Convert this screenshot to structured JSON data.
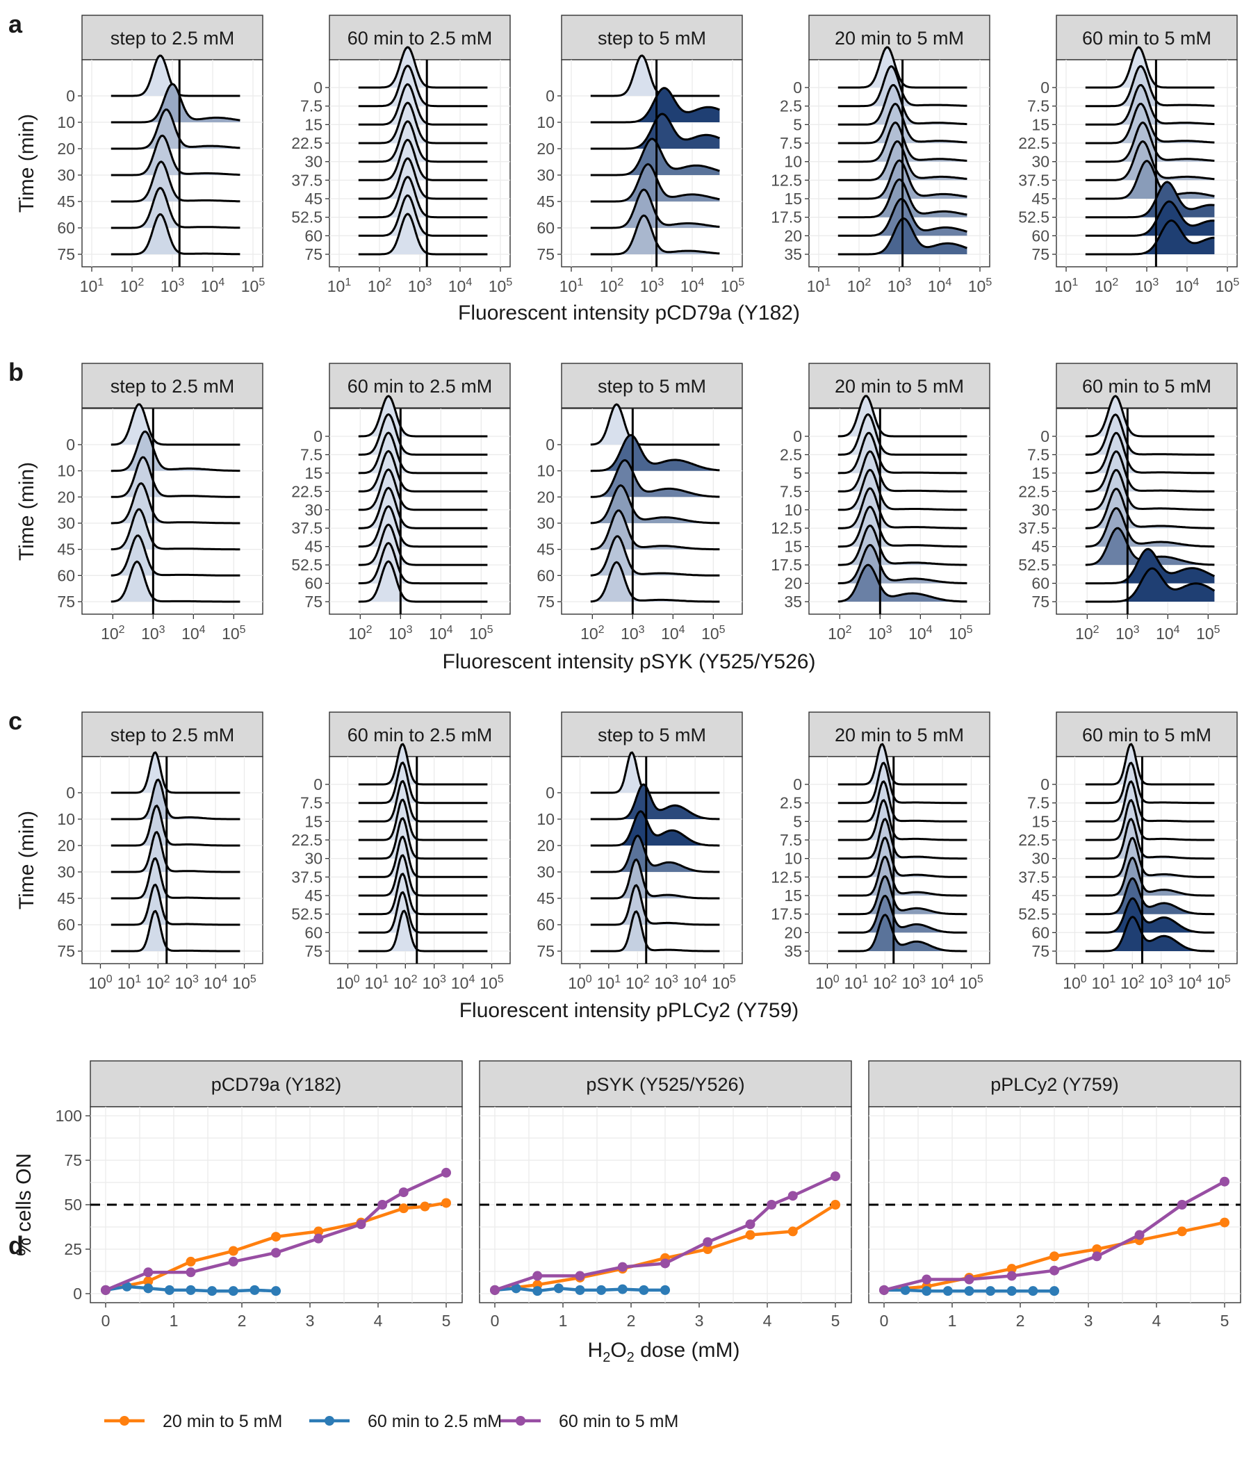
{
  "panel_letters": [
    "a",
    "b",
    "c",
    "d"
  ],
  "chart_data": [
    {
      "type": "ridgeline",
      "panel": "a",
      "xlabel": "Fluorescent intensity pCD79a (Y182)",
      "ylabel": "Time (min)",
      "x_scale": "log10",
      "x_ticks": [
        "10^1",
        "10^2",
        "10^3",
        "10^4",
        "10^5"
      ],
      "facets": [
        {
          "title": "step to 2.5 mM",
          "times": [
            "0",
            "10",
            "20",
            "30",
            "45",
            "60",
            "75"
          ],
          "threshold": 1500,
          "xlim": [
            10,
            100000
          ],
          "peak_log10": [
            2.7,
            3.0,
            2.85,
            2.75,
            2.72,
            2.7,
            2.7
          ],
          "tail_weight": [
            0,
            0.2,
            0.12,
            0.08,
            0.05,
            0.04,
            0.03
          ]
        },
        {
          "title": "60 min to 2.5 mM",
          "times": [
            "0",
            "7.5",
            "15",
            "22.5",
            "30",
            "37.5",
            "45",
            "52.5",
            "60",
            "75"
          ],
          "threshold": 1500,
          "xlim": [
            10,
            100000
          ],
          "peak_log10": [
            2.7,
            2.7,
            2.7,
            2.7,
            2.7,
            2.7,
            2.7,
            2.7,
            2.7,
            2.7
          ],
          "tail_weight": [
            0,
            0,
            0,
            0,
            0,
            0,
            0,
            0,
            0,
            0
          ]
        },
        {
          "title": "step to 5 mM",
          "times": [
            "0",
            "10",
            "20",
            "30",
            "45",
            "60",
            "75"
          ],
          "threshold": 1300,
          "xlim": [
            10,
            100000
          ],
          "peak_log10": [
            2.75,
            3.3,
            3.25,
            3.0,
            2.9,
            2.8,
            2.8
          ],
          "tail_weight": [
            0,
            0.6,
            0.55,
            0.4,
            0.3,
            0.2,
            0.15
          ]
        },
        {
          "title": "20 min to 5 mM",
          "times": [
            "0",
            "2.5",
            "5",
            "7.5",
            "10",
            "12.5",
            "15",
            "17.5",
            "20",
            "35"
          ],
          "threshold": 1200,
          "xlim": [
            10,
            100000
          ],
          "peak_log10": [
            2.7,
            2.8,
            2.85,
            2.9,
            2.9,
            2.95,
            3.0,
            3.0,
            3.05,
            3.1
          ],
          "tail_weight": [
            0,
            0.05,
            0.08,
            0.1,
            0.12,
            0.15,
            0.2,
            0.25,
            0.35,
            0.45
          ]
        },
        {
          "title": "60 min to 5 mM",
          "times": [
            "0",
            "7.5",
            "15",
            "22.5",
            "30",
            "37.5",
            "45",
            "52.5",
            "60",
            "75"
          ],
          "threshold": 1700,
          "xlim": [
            10,
            100000
          ],
          "peak_log10": [
            2.8,
            2.85,
            2.85,
            2.85,
            2.9,
            2.9,
            3.0,
            3.5,
            3.55,
            3.6
          ],
          "tail_weight": [
            0,
            0.05,
            0.08,
            0.1,
            0.12,
            0.15,
            0.25,
            0.5,
            0.6,
            0.65
          ]
        }
      ]
    },
    {
      "type": "ridgeline",
      "panel": "b",
      "xlabel": "Fluorescent intensity pSYK (Y525/Y526)",
      "ylabel": "Time (min)",
      "x_scale": "log10",
      "x_ticks": [
        "10^2",
        "10^3",
        "10^4",
        "10^5"
      ],
      "facets": [
        {
          "title": "step to 2.5 mM",
          "times": [
            "0",
            "10",
            "20",
            "30",
            "45",
            "60",
            "75"
          ],
          "threshold": 1000,
          "xlim": [
            30,
            300000
          ],
          "peak_log10": [
            2.65,
            2.8,
            2.75,
            2.7,
            2.65,
            2.62,
            2.6
          ],
          "tail_weight": [
            0,
            0.1,
            0.05,
            0.04,
            0.03,
            0.03,
            0.02
          ]
        },
        {
          "title": "60 min to 2.5 mM",
          "times": [
            "0",
            "7.5",
            "15",
            "22.5",
            "30",
            "37.5",
            "45",
            "52.5",
            "60",
            "75"
          ],
          "threshold": 1000,
          "xlim": [
            30,
            300000
          ],
          "peak_log10": [
            2.7,
            2.7,
            2.7,
            2.7,
            2.7,
            2.7,
            2.7,
            2.7,
            2.7,
            2.7
          ],
          "tail_weight": [
            0,
            0,
            0,
            0,
            0,
            0,
            0,
            0,
            0,
            0
          ]
        },
        {
          "title": "step to 5 mM",
          "times": [
            "0",
            "10",
            "20",
            "30",
            "45",
            "60",
            "75"
          ],
          "threshold": 1000,
          "xlim": [
            30,
            300000
          ],
          "peak_log10": [
            2.6,
            2.95,
            2.8,
            2.7,
            2.65,
            2.62,
            2.6
          ],
          "tail_weight": [
            0,
            0.45,
            0.35,
            0.25,
            0.15,
            0.1,
            0.08
          ]
        },
        {
          "title": "20 min to 5 mM",
          "times": [
            "0",
            "2.5",
            "5",
            "7.5",
            "10",
            "12.5",
            "15",
            "17.5",
            "20",
            "35"
          ],
          "threshold": 1000,
          "xlim": [
            30,
            300000
          ],
          "peak_log10": [
            2.65,
            2.7,
            2.72,
            2.75,
            2.75,
            2.75,
            2.75,
            2.75,
            2.75,
            2.7
          ],
          "tail_weight": [
            0,
            0,
            0.02,
            0.03,
            0.04,
            0.05,
            0.06,
            0.1,
            0.2,
            0.35
          ]
        },
        {
          "title": "60 min to 5 mM",
          "times": [
            "0",
            "7.5",
            "15",
            "22.5",
            "30",
            "37.5",
            "45",
            "52.5",
            "60",
            "75"
          ],
          "threshold": 1000,
          "xlim": [
            30,
            300000
          ],
          "peak_log10": [
            2.7,
            2.7,
            2.72,
            2.72,
            2.72,
            2.72,
            2.72,
            2.75,
            3.5,
            3.6
          ],
          "tail_weight": [
            0,
            0.02,
            0.03,
            0.04,
            0.06,
            0.1,
            0.2,
            0.35,
            0.6,
            0.7
          ]
        }
      ]
    },
    {
      "type": "ridgeline",
      "panel": "c",
      "xlabel": "Fluorescent intensity pPLCy2 (Y759)",
      "ylabel": "Time (min)",
      "x_scale": "log10",
      "x_ticks": [
        "10^0",
        "10^1",
        "10^2",
        "10^3",
        "10^4",
        "10^5"
      ],
      "facets": [
        {
          "title": "step to 2.5 mM",
          "times": [
            "0",
            "10",
            "20",
            "30",
            "45",
            "60",
            "75"
          ],
          "threshold": 200,
          "xlim": [
            0.5,
            200000
          ],
          "peak_log10": [
            1.9,
            2.0,
            1.95,
            1.95,
            1.9,
            1.9,
            1.9
          ],
          "tail_weight": [
            0,
            0.08,
            0.05,
            0.04,
            0.03,
            0.03,
            0.02
          ]
        },
        {
          "title": "60 min to 2.5 mM",
          "times": [
            "0",
            "7.5",
            "15",
            "22.5",
            "30",
            "37.5",
            "45",
            "52.5",
            "60",
            "75"
          ],
          "threshold": 250,
          "xlim": [
            0.5,
            200000
          ],
          "peak_log10": [
            1.9,
            1.9,
            1.9,
            1.9,
            1.9,
            1.9,
            1.9,
            1.9,
            1.9,
            1.95
          ],
          "tail_weight": [
            0,
            0,
            0,
            0,
            0,
            0,
            0,
            0,
            0,
            0
          ]
        },
        {
          "title": "step to 5 mM",
          "times": [
            "0",
            "10",
            "20",
            "30",
            "45",
            "60",
            "75"
          ],
          "threshold": 200,
          "xlim": [
            0.5,
            200000
          ],
          "peak_log10": [
            1.8,
            2.2,
            2.1,
            2.0,
            1.95,
            1.95,
            1.95
          ],
          "tail_weight": [
            0,
            0.55,
            0.6,
            0.4,
            0.15,
            0.08,
            0.06
          ]
        },
        {
          "title": "20 min to 5 mM",
          "times": [
            "0",
            "2.5",
            "5",
            "7.5",
            "10",
            "12.5",
            "15",
            "17.5",
            "20",
            "35"
          ],
          "threshold": 200,
          "xlim": [
            0.5,
            200000
          ],
          "peak_log10": [
            1.9,
            1.95,
            1.95,
            1.95,
            2.0,
            2.0,
            2.0,
            2.0,
            2.0,
            2.0
          ],
          "tail_weight": [
            0,
            0.02,
            0.03,
            0.05,
            0.08,
            0.1,
            0.15,
            0.25,
            0.35,
            0.4
          ]
        },
        {
          "title": "60 min to 5 mM",
          "times": [
            "0",
            "7.5",
            "15",
            "22.5",
            "30",
            "37.5",
            "45",
            "52.5",
            "60",
            "75"
          ],
          "threshold": 220,
          "xlim": [
            0.5,
            200000
          ],
          "peak_log10": [
            1.95,
            1.95,
            1.95,
            1.95,
            1.95,
            2.0,
            2.0,
            2.0,
            2.0,
            2.0
          ],
          "tail_weight": [
            0,
            0.02,
            0.03,
            0.05,
            0.08,
            0.12,
            0.25,
            0.45,
            0.6,
            0.6
          ]
        }
      ]
    },
    {
      "type": "line",
      "panel": "d",
      "xlabel": "H2O2 dose (mM)",
      "ylabel": "% cells ON",
      "xlim": [
        0,
        5
      ],
      "ylim": [
        0,
        100
      ],
      "x_ticks": [
        0,
        1,
        2,
        3,
        4,
        5
      ],
      "y_ticks": [
        0,
        25,
        50,
        75,
        100
      ],
      "reference_line": 50,
      "legend_position": "bottom",
      "colors": {
        "20 min to 5 mM": "#ff7f0e",
        "60 min to 2.5 mM": "#2c7bb6",
        "60 min to 5 mM": "#984ea3"
      },
      "facets": [
        {
          "title": "pCD79a (Y182)",
          "series": [
            {
              "name": "20 min to 5 mM",
              "x": [
                0,
                0.625,
                1.25,
                1.875,
                2.5,
                3.125,
                3.75,
                4.375,
                4.6875,
                5
              ],
              "y": [
                2,
                7,
                18,
                24,
                32,
                35,
                40,
                48,
                49,
                51
              ]
            },
            {
              "name": "60 min to 2.5 mM",
              "x": [
                0,
                0.3125,
                0.625,
                0.9375,
                1.25,
                1.5625,
                1.875,
                2.1875,
                2.5
              ],
              "y": [
                2,
                4,
                3,
                2,
                2,
                1.5,
                1.5,
                2,
                1.5
              ]
            },
            {
              "name": "60 min to 5 mM",
              "x": [
                0,
                0.625,
                1.25,
                1.875,
                2.5,
                3.125,
                3.75,
                4.0625,
                4.375,
                5
              ],
              "y": [
                2,
                12,
                12,
                18,
                23,
                31,
                39,
                50,
                57,
                68
              ]
            }
          ]
        },
        {
          "title": "pSYK (Y525/Y526)",
          "series": [
            {
              "name": "20 min to 5 mM",
              "x": [
                0,
                0.625,
                1.25,
                1.875,
                2.5,
                3.125,
                3.75,
                4.375,
                5
              ],
              "y": [
                2,
                5,
                9,
                14,
                20,
                25,
                33,
                35,
                50
              ]
            },
            {
              "name": "60 min to 2.5 mM",
              "x": [
                0,
                0.3125,
                0.625,
                0.9375,
                1.25,
                1.5625,
                1.875,
                2.1875,
                2.5
              ],
              "y": [
                2,
                3,
                1.5,
                3,
                2,
                2,
                2.5,
                2,
                2
              ]
            },
            {
              "name": "60 min to 5 mM",
              "x": [
                0,
                0.625,
                1.25,
                1.875,
                2.5,
                3.125,
                3.75,
                4.0625,
                4.375,
                5
              ],
              "y": [
                2,
                10,
                10,
                15,
                17,
                29,
                39,
                50,
                55,
                66
              ]
            }
          ]
        },
        {
          "title": "pPLCy2 (Y759)",
          "series": [
            {
              "name": "20 min to 5 mM",
              "x": [
                0,
                0.625,
                1.25,
                1.875,
                2.5,
                3.125,
                3.75,
                4.375,
                5
              ],
              "y": [
                2,
                4,
                9,
                14,
                21,
                25,
                30,
                35,
                40
              ]
            },
            {
              "name": "60 min to 2.5 mM",
              "x": [
                0,
                0.3125,
                0.625,
                0.9375,
                1.25,
                1.5625,
                1.875,
                2.1875,
                2.5
              ],
              "y": [
                2,
                2,
                1.5,
                1.5,
                1.5,
                1.5,
                1.5,
                1.5,
                1.5
              ]
            },
            {
              "name": "60 min to 5 mM",
              "x": [
                0,
                0.625,
                1.25,
                1.875,
                2.5,
                3.125,
                3.75,
                4.375,
                5
              ],
              "y": [
                2,
                8,
                8,
                10,
                13,
                21,
                33,
                50,
                63
              ]
            }
          ]
        }
      ],
      "legend": [
        "20 min to 5 mM",
        "60 min to 2.5 mM",
        "60 min to 5 mM"
      ]
    }
  ]
}
